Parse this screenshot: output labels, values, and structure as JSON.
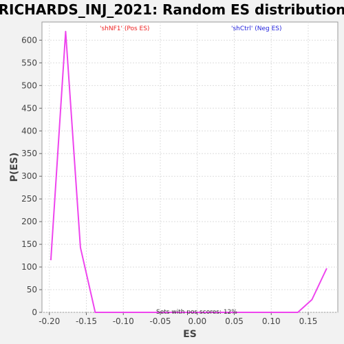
{
  "chart_data": {
    "type": "line",
    "title": "RICHARDS_INJ_2021: Random ES distribution",
    "xlabel": "ES",
    "ylabel": "P(ES)",
    "xlim": [
      -0.21,
      0.19
    ],
    "ylim": [
      0,
      640
    ],
    "xticks": [
      -0.2,
      -0.15,
      -0.1,
      -0.05,
      0.0,
      0.05,
      0.1,
      0.15
    ],
    "xtick_labels": [
      "-0.20",
      "-0.15",
      "-0.10",
      "-0.05",
      "0.00",
      "0.05",
      "0.10",
      "0.15"
    ],
    "yticks": [
      0,
      50,
      100,
      150,
      200,
      250,
      300,
      350,
      400,
      450,
      500,
      550,
      600
    ],
    "ytick_labels": [
      "0",
      "50",
      "100",
      "150",
      "200",
      "250",
      "300",
      "350",
      "400",
      "450",
      "500",
      "550",
      "600"
    ],
    "grid": true,
    "series": [
      {
        "color": "#ee44ee",
        "x": [
          -0.198,
          -0.178,
          -0.158,
          -0.138,
          -0.118,
          -0.098,
          -0.078,
          -0.058,
          -0.038,
          -0.018,
          0.002,
          0.022,
          0.042,
          0.062,
          0.082,
          0.102,
          0.122,
          0.136,
          0.155,
          0.175
        ],
        "y": [
          115,
          619,
          143,
          0,
          0,
          0,
          0,
          0,
          0,
          0,
          0,
          0,
          0,
          0,
          0,
          0,
          0,
          0,
          28,
          97
        ]
      }
    ],
    "legend": [
      {
        "label": "'shNF1' (Pos ES)",
        "color": "#ee2222",
        "placement": "top-left"
      },
      {
        "label": "'shCtrl' (Neg ES)",
        "color": "#2222dd",
        "placement": "top-right"
      }
    ],
    "annotation": "Sets with pos scores: 12%"
  }
}
